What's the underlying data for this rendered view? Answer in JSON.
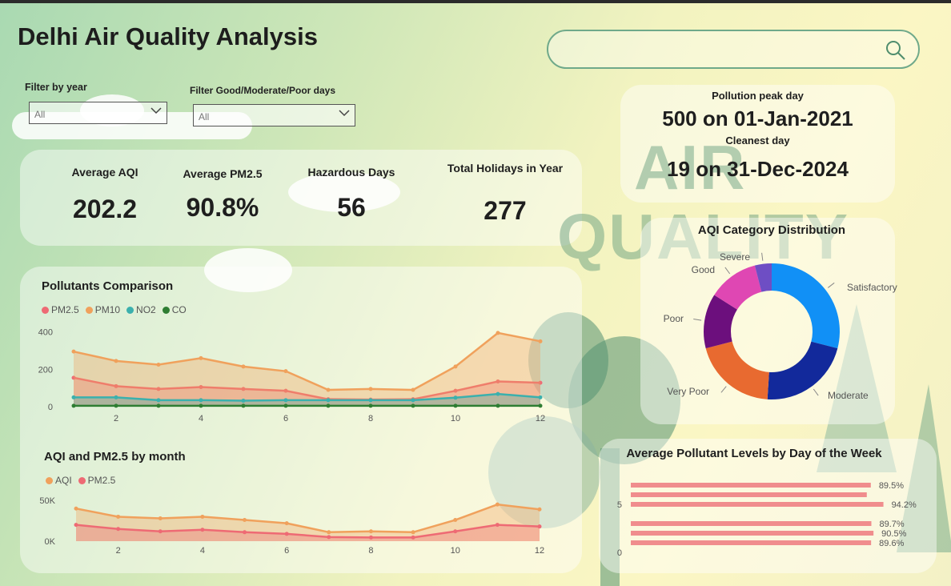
{
  "header": {
    "title": "Delhi Air Quality Analysis"
  },
  "search": {
    "placeholder": ""
  },
  "filters": {
    "year": {
      "label": "Filter by year",
      "value": "All"
    },
    "category": {
      "label": "Filter Good/Moderate/Poor days",
      "value": "All"
    }
  },
  "kpis": [
    {
      "label": "Average AQI",
      "value": "202.2"
    },
    {
      "label": "Average PM2.5",
      "value": "90.8%"
    },
    {
      "label": "Hazardous Days",
      "value": "56"
    },
    {
      "label": "Total Holidays in Year",
      "value": "277"
    }
  ],
  "peak": {
    "peak_label": "Pollution peak day",
    "peak_value": "500 on 01-Jan-2021",
    "clean_label": "Cleanest day",
    "clean_value": "19 on 31-Dec-2024"
  },
  "background_words": {
    "line1": "AIR",
    "line2": "QUALITY"
  },
  "colors": {
    "pm25": "#ee6a74",
    "pm10": "#f0a15c",
    "no2": "#3bb0ad",
    "co": "#2e7d32",
    "aqi": "#f0a15c",
    "bar": "#f08d8d"
  },
  "chart_data": [
    {
      "type": "area",
      "title": "Pollutants Comparison",
      "x": [
        1,
        2,
        3,
        4,
        5,
        6,
        7,
        8,
        9,
        10,
        11,
        12
      ],
      "x_ticks": [
        "2",
        "4",
        "6",
        "8",
        "10",
        "12"
      ],
      "y_ticks": [
        "0",
        "200",
        "400"
      ],
      "ylim": [
        0,
        420
      ],
      "series": [
        {
          "name": "PM2.5",
          "color": "#ee6a74",
          "values": [
            155,
            110,
            95,
            105,
            95,
            85,
            40,
            38,
            40,
            85,
            135,
            128
          ]
        },
        {
          "name": "PM10",
          "color": "#f0a15c",
          "values": [
            295,
            245,
            225,
            260,
            215,
            190,
            90,
            95,
            90,
            215,
            395,
            350
          ]
        },
        {
          "name": "NO2",
          "color": "#3bb0ad",
          "values": [
            50,
            50,
            35,
            35,
            32,
            35,
            35,
            35,
            35,
            48,
            68,
            50
          ]
        },
        {
          "name": "CO",
          "color": "#2e7d32",
          "values": [
            5,
            5,
            5,
            5,
            5,
            5,
            5,
            5,
            5,
            5,
            5,
            5
          ]
        }
      ]
    },
    {
      "type": "area",
      "title": "AQI and PM2.5 by month",
      "x": [
        1,
        2,
        3,
        4,
        5,
        6,
        7,
        8,
        9,
        10,
        11,
        12
      ],
      "x_ticks": [
        "2",
        "4",
        "6",
        "8",
        "10",
        "12"
      ],
      "y_ticks": [
        "0K",
        "50K"
      ],
      "ylim": [
        0,
        55000
      ],
      "series": [
        {
          "name": "AQI",
          "color": "#f0a15c",
          "values": [
            40000,
            30000,
            28000,
            30000,
            26000,
            22000,
            11000,
            12000,
            11000,
            26000,
            45000,
            39000
          ]
        },
        {
          "name": "PM2.5",
          "color": "#ee6a74",
          "values": [
            20000,
            15000,
            12000,
            14000,
            11000,
            9000,
            5000,
            4500,
            4500,
            12000,
            20000,
            18000
          ]
        }
      ]
    },
    {
      "type": "pie",
      "title": "AQI Category Distribution",
      "labels": [
        "Satisfactory",
        "Moderate",
        "Very Poor",
        "Poor",
        "Good",
        "Severe"
      ],
      "values": [
        29,
        22,
        20,
        13,
        12,
        4
      ],
      "colors": [
        "#1190f6",
        "#12299b",
        "#e86a30",
        "#6c0f7d",
        "#df47b3",
        "#6e4ec4"
      ]
    },
    {
      "type": "bar",
      "title": "Average Pollutant Levels by Day of the Week",
      "orientation": "horizontal",
      "x_ticks": [
        "0",
        "5"
      ],
      "values": [
        89.5,
        88.0,
        94.2,
        89.7,
        90.5,
        89.6
      ],
      "data_labels": [
        "89.5%",
        "",
        "94.2%",
        "89.7%",
        "90.5%",
        "89.6%"
      ]
    }
  ]
}
